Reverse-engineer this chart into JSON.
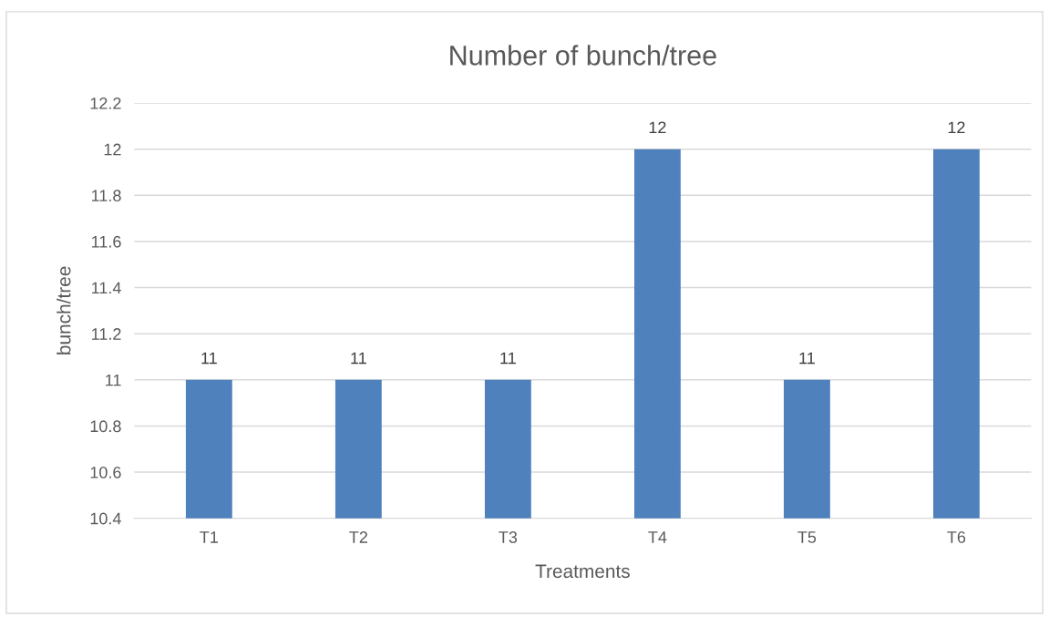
{
  "chart_data": {
    "type": "bar",
    "title": "Number of bunch/tree",
    "xlabel": "Treatments",
    "ylabel": "bunch/tree",
    "categories": [
      "T1",
      "T2",
      "T3",
      "T4",
      "T5",
      "T6"
    ],
    "values": [
      11,
      11,
      11,
      12,
      11,
      12
    ],
    "color": "#4f81bd",
    "ylim": [
      10.4,
      12.2
    ],
    "yticks": [
      {
        "value": 10.4,
        "label": "10.4"
      },
      {
        "value": 10.6,
        "label": "10.6"
      },
      {
        "value": 10.8,
        "label": "10.8"
      },
      {
        "value": 11,
        "label": "11"
      },
      {
        "value": 11.2,
        "label": "11.2"
      },
      {
        "value": 11.4,
        "label": "11.4"
      },
      {
        "value": 11.6,
        "label": "11.6"
      },
      {
        "value": 11.8,
        "label": "11.8"
      },
      {
        "value": 12,
        "label": "12"
      },
      {
        "value": 12.2,
        "label": "12.2"
      }
    ],
    "grid": "y",
    "data_labels": true,
    "legend": false
  }
}
